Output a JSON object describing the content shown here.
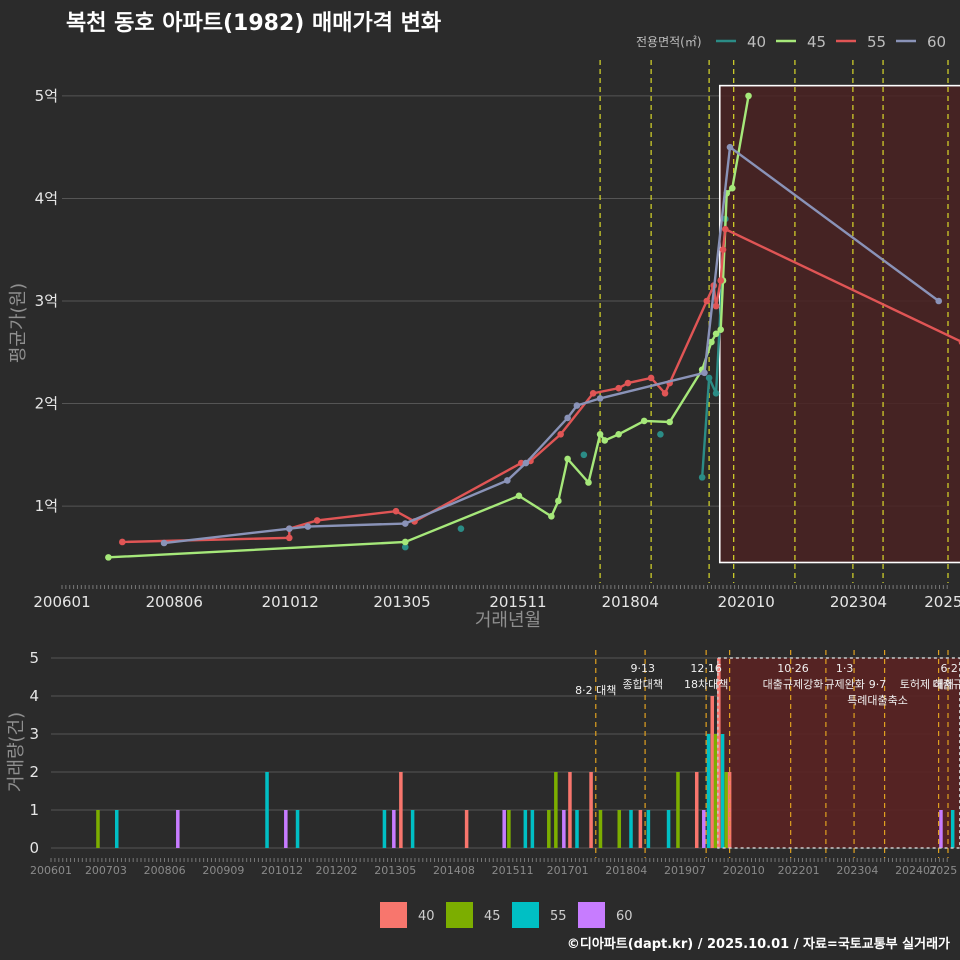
{
  "colors": {
    "background": "#2b2b2b",
    "grid": "#555555",
    "policy_line": "#d9d92a",
    "policy_line_bottom": "#e0a020",
    "highlight_fill": "#4a2222",
    "highlight_border_top": "#ffffff",
    "highlight_border_bottom": "#cccccc"
  },
  "chart_data": [
    {
      "type": "line",
      "title": "복천 동호 아파트(1982) 매매가격 변화",
      "xlabel": "거래년월",
      "ylabel": "평균가(원)",
      "x_unit": "year_decimal",
      "xlim": [
        2006.0,
        2025.1
      ],
      "ylim": [
        0.25,
        5.35
      ],
      "y_ticks": [
        {
          "value": 1,
          "label": "1억"
        },
        {
          "value": 2,
          "label": "2억"
        },
        {
          "value": 3,
          "label": "3억"
        },
        {
          "value": 4,
          "label": "4억"
        },
        {
          "value": 5,
          "label": "5억"
        }
      ],
      "x_ticks": [
        {
          "value": 2006.0,
          "label": "200601"
        },
        {
          "value": 2008.42,
          "label": "200806"
        },
        {
          "value": 2010.92,
          "label": "201012"
        },
        {
          "value": 2013.33,
          "label": "201305"
        },
        {
          "value": 2015.83,
          "label": "201511"
        },
        {
          "value": 2018.25,
          "label": "201804"
        },
        {
          "value": 2020.75,
          "label": "202010"
        },
        {
          "value": 2023.17,
          "label": "202304"
        },
        {
          "value": 2025.0,
          "label": "2025"
        }
      ],
      "legend_title": "전용면적(㎡)",
      "policy_lines": [
        2017.6,
        2018.7,
        2019.95,
        2020.48,
        2021.8,
        2023.05,
        2023.7,
        2025.1,
        2025.45
      ],
      "highlight_range": [
        2020.18,
        2025.4
      ],
      "highlight_y": [
        0.45,
        5.1
      ],
      "series": [
        {
          "name": "40",
          "color": "#2b8c86",
          "points": [
            [
              2013.4,
              0.6
            ],
            [
              2014.6,
              0.78
            ],
            [
              2017.25,
              1.5
            ],
            [
              2018.9,
              1.7
            ],
            [
              2019.8,
              1.28
            ],
            [
              2019.95,
              2.25
            ],
            [
              2020.1,
              2.1
            ],
            [
              2020.3,
              3.8
            ]
          ],
          "line": [
            [
              2019.8,
              1.28
            ],
            [
              2019.95,
              2.25
            ],
            [
              2020.1,
              2.1
            ],
            [
              2020.3,
              3.8
            ]
          ]
        },
        {
          "name": "45",
          "color": "#a6e87a",
          "points": [
            [
              2007.0,
              0.5
            ],
            [
              2013.4,
              0.65
            ],
            [
              2015.85,
              1.1
            ],
            [
              2016.55,
              0.9
            ],
            [
              2016.7,
              1.05
            ],
            [
              2016.9,
              1.46
            ],
            [
              2017.35,
              1.23
            ],
            [
              2017.6,
              1.7
            ],
            [
              2017.7,
              1.64
            ],
            [
              2018.0,
              1.7
            ],
            [
              2018.55,
              1.83
            ],
            [
              2019.1,
              1.82
            ],
            [
              2019.8,
              2.33
            ],
            [
              2020.0,
              2.6
            ],
            [
              2020.1,
              2.68
            ],
            [
              2020.2,
              2.72
            ],
            [
              2020.25,
              3.2
            ],
            [
              2020.33,
              4.05
            ],
            [
              2020.45,
              4.1
            ],
            [
              2020.8,
              5.0
            ]
          ]
        },
        {
          "name": "55",
          "color": "#e05555",
          "points": [
            [
              2007.3,
              0.65
            ],
            [
              2010.9,
              0.69
            ],
            [
              2010.9,
              0.78
            ],
            [
              2011.5,
              0.86
            ],
            [
              2013.2,
              0.95
            ],
            [
              2013.6,
              0.85
            ],
            [
              2015.9,
              1.42
            ],
            [
              2016.1,
              1.44
            ],
            [
              2016.75,
              1.7
            ],
            [
              2017.45,
              2.1
            ],
            [
              2018.0,
              2.15
            ],
            [
              2018.2,
              2.2
            ],
            [
              2018.7,
              2.25
            ],
            [
              2019.0,
              2.1
            ],
            [
              2019.1,
              2.2
            ],
            [
              2019.9,
              3.0
            ],
            [
              2020.05,
              3.15
            ],
            [
              2020.1,
              2.95
            ],
            [
              2020.2,
              3.2
            ],
            [
              2020.25,
              3.5
            ],
            [
              2020.3,
              3.7
            ],
            [
              2025.4,
              2.6
            ]
          ]
        },
        {
          "name": "60",
          "color": "#8a93b8",
          "points": [
            [
              2008.2,
              0.64
            ],
            [
              2010.9,
              0.78
            ],
            [
              2011.3,
              0.8
            ],
            [
              2013.4,
              0.83
            ],
            [
              2015.6,
              1.25
            ],
            [
              2016.0,
              1.42
            ],
            [
              2016.9,
              1.86
            ],
            [
              2017.1,
              1.98
            ],
            [
              2017.6,
              2.05
            ],
            [
              2019.85,
              2.3
            ],
            [
              2020.4,
              4.5
            ],
            [
              2024.9,
              3.0
            ]
          ]
        }
      ]
    },
    {
      "type": "bar",
      "ylabel": "거래량(건)",
      "xlim": [
        2006.0,
        2025.1
      ],
      "ylim": [
        0,
        5
      ],
      "y_ticks": [
        0,
        1,
        2,
        3,
        4,
        5
      ],
      "x_ticks": [
        {
          "value": 2006.0,
          "label": "200601"
        },
        {
          "value": 2007.17,
          "label": "200703"
        },
        {
          "value": 2008.42,
          "label": "200806"
        },
        {
          "value": 2009.67,
          "label": "200909"
        },
        {
          "value": 2010.92,
          "label": "201012"
        },
        {
          "value": 2012.08,
          "label": "201202"
        },
        {
          "value": 2013.33,
          "label": "201305"
        },
        {
          "value": 2014.58,
          "label": "201408"
        },
        {
          "value": 2015.83,
          "label": "201511"
        },
        {
          "value": 2017.0,
          "label": "201701"
        },
        {
          "value": 2018.25,
          "label": "201804"
        },
        {
          "value": 2019.5,
          "label": "201907"
        },
        {
          "value": 2020.75,
          "label": "202010"
        },
        {
          "value": 2021.92,
          "label": "202201"
        },
        {
          "value": 2023.17,
          "label": "202304"
        },
        {
          "value": 2024.42,
          "label": "202407"
        },
        {
          "value": 2025.0,
          "label": "2025"
        }
      ],
      "legend": [
        "40",
        "45",
        "55",
        "60"
      ],
      "legend_colors": [
        "#f8766d",
        "#7cae00",
        "#00bfc4",
        "#c77cff"
      ],
      "highlight_range": [
        2020.2,
        2025.35
      ],
      "policy_lines": [
        2017.6,
        2018.65,
        2019.95,
        2020.45,
        2021.75,
        2022.5,
        2023.1,
        2023.75,
        2024.9,
        2025.1
      ],
      "events": [
        {
          "x": 2017.6,
          "lines": [
            "8·2 대책"
          ]
        },
        {
          "x": 2018.6,
          "lines": [
            "9·13",
            "종합대책"
          ]
        },
        {
          "x": 2019.95,
          "lines": [
            "12·16",
            "18차대책"
          ]
        },
        {
          "x": 2021.8,
          "lines": [
            "10·26",
            "대출규제강화"
          ]
        },
        {
          "x": 2022.9,
          "lines": [
            "1·3",
            "규제완화"
          ]
        },
        {
          "x": 2023.6,
          "lines": [
            "9·7",
            "특례대출축소"
          ]
        },
        {
          "x": 2024.65,
          "lines": [
            "토허제 해제"
          ]
        },
        {
          "x": 2025.2,
          "lines": [
            "6·27",
            "대출규제"
          ]
        }
      ],
      "bars": [
        {
          "x": 2007.0,
          "series": "45",
          "value": 1
        },
        {
          "x": 2007.4,
          "series": "55",
          "value": 1
        },
        {
          "x": 2008.7,
          "series": "60",
          "value": 1
        },
        {
          "x": 2010.6,
          "series": "55",
          "value": 2
        },
        {
          "x": 2011.0,
          "series": "60",
          "value": 1
        },
        {
          "x": 2011.25,
          "series": "55",
          "value": 1
        },
        {
          "x": 2013.1,
          "series": "55",
          "value": 1
        },
        {
          "x": 2013.3,
          "series": "60",
          "value": 1
        },
        {
          "x": 2013.45,
          "series": "40",
          "value": 2
        },
        {
          "x": 2013.7,
          "series": "55",
          "value": 1
        },
        {
          "x": 2014.85,
          "series": "40",
          "value": 1
        },
        {
          "x": 2015.65,
          "series": "60",
          "value": 1
        },
        {
          "x": 2015.75,
          "series": "45",
          "value": 1
        },
        {
          "x": 2016.1,
          "series": "55",
          "value": 1
        },
        {
          "x": 2016.25,
          "series": "55",
          "value": 1
        },
        {
          "x": 2016.6,
          "series": "45",
          "value": 1
        },
        {
          "x": 2016.75,
          "series": "45",
          "value": 2
        },
        {
          "x": 2016.92,
          "series": "60",
          "value": 1
        },
        {
          "x": 2017.05,
          "series": "40",
          "value": 2
        },
        {
          "x": 2017.2,
          "series": "55",
          "value": 1
        },
        {
          "x": 2017.5,
          "series": "40",
          "value": 2
        },
        {
          "x": 2017.7,
          "series": "45",
          "value": 1
        },
        {
          "x": 2018.1,
          "series": "45",
          "value": 1
        },
        {
          "x": 2018.35,
          "series": "55",
          "value": 1
        },
        {
          "x": 2018.55,
          "series": "40",
          "value": 1
        },
        {
          "x": 2018.72,
          "series": "55",
          "value": 1
        },
        {
          "x": 2019.15,
          "series": "55",
          "value": 1
        },
        {
          "x": 2019.35,
          "series": "45",
          "value": 2
        },
        {
          "x": 2019.75,
          "series": "40",
          "value": 2
        },
        {
          "x": 2019.9,
          "series": "60",
          "value": 1
        },
        {
          "x": 2020.0,
          "series": "55",
          "value": 3
        },
        {
          "x": 2020.08,
          "series": "40",
          "value": 4
        },
        {
          "x": 2020.15,
          "series": "45",
          "value": 3
        },
        {
          "x": 2020.22,
          "series": "40",
          "value": 5
        },
        {
          "x": 2020.3,
          "series": "55",
          "value": 3
        },
        {
          "x": 2020.38,
          "series": "45",
          "value": 2
        },
        {
          "x": 2020.45,
          "series": "40",
          "value": 2
        },
        {
          "x": 2024.95,
          "series": "60",
          "value": 1
        },
        {
          "x": 2025.2,
          "series": "55",
          "value": 1
        }
      ]
    }
  ],
  "credit": "©디아파트(dapt.kr) / 2025.10.01 / 자료=국토교통부 실거래가"
}
